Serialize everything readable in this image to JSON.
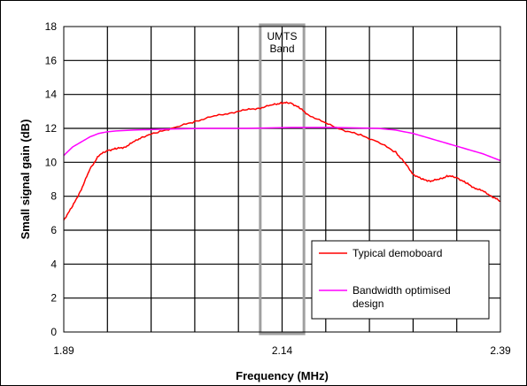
{
  "chart_data": {
    "type": "line",
    "xlabel": "Frequency (MHz)",
    "ylabel": "Small signal gain (dB)",
    "xlim": [
      1.89,
      2.39
    ],
    "ylim": [
      0,
      18
    ],
    "x_ticks": [
      "1.89",
      "2.14",
      "2.39"
    ],
    "y_ticks": [
      0,
      2,
      4,
      6,
      8,
      10,
      12,
      14,
      16,
      18
    ],
    "grid": true,
    "legend_position": "bottom-right",
    "band": {
      "label_line1": "UMTS",
      "label_line2": "Band",
      "x_start": 2.115,
      "x_end": 2.165
    },
    "series": [
      {
        "name": "Typical demoboard",
        "color": "#ff0000",
        "x": [
          1.89,
          1.9,
          1.91,
          1.92,
          1.93,
          1.94,
          1.95,
          1.96,
          1.97,
          1.98,
          2.0,
          2.02,
          2.04,
          2.06,
          2.08,
          2.1,
          2.115,
          2.13,
          2.14,
          2.15,
          2.16,
          2.17,
          2.19,
          2.21,
          2.23,
          2.25,
          2.27,
          2.28,
          2.29,
          2.3,
          2.31,
          2.32,
          2.33,
          2.34,
          2.35,
          2.36,
          2.37,
          2.38,
          2.39
        ],
        "y": [
          6.6,
          7.4,
          8.4,
          9.6,
          10.4,
          10.7,
          10.8,
          10.9,
          11.2,
          11.5,
          11.8,
          12.1,
          12.4,
          12.7,
          12.9,
          13.1,
          13.2,
          13.4,
          13.5,
          13.5,
          13.2,
          12.8,
          12.3,
          11.9,
          11.6,
          11.2,
          10.6,
          10.0,
          9.3,
          9.0,
          8.9,
          9.0,
          9.2,
          9.1,
          8.8,
          8.5,
          8.3,
          8.0,
          7.7
        ]
      },
      {
        "name": "Bandwidth optimised design",
        "color": "#ff00ff",
        "x": [
          1.89,
          1.9,
          1.91,
          1.92,
          1.93,
          1.94,
          1.95,
          1.97,
          2.0,
          2.05,
          2.1,
          2.15,
          2.2,
          2.25,
          2.27,
          2.29,
          2.31,
          2.33,
          2.35,
          2.37,
          2.39
        ],
        "y": [
          10.4,
          10.9,
          11.2,
          11.5,
          11.7,
          11.8,
          11.85,
          11.9,
          11.95,
          12.0,
          12.0,
          12.05,
          12.05,
          12.0,
          11.9,
          11.7,
          11.4,
          11.1,
          10.8,
          10.5,
          10.1
        ]
      }
    ]
  }
}
